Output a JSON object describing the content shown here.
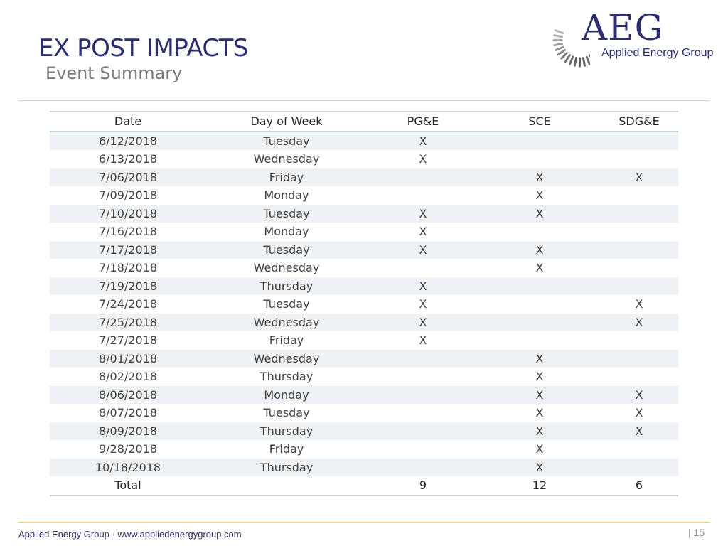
{
  "header": {
    "title": "EX POST IMPACTS",
    "subtitle": "Event Summary"
  },
  "logo": {
    "letters": "AEG",
    "tagline": "Applied Energy Group"
  },
  "table": {
    "columns": [
      "Date",
      "Day of Week",
      "PG&E",
      "SCE",
      "SDG&E"
    ],
    "rows": [
      [
        "6/12/2018",
        "Tuesday",
        "X",
        "",
        ""
      ],
      [
        "6/13/2018",
        "Wednesday",
        "X",
        "",
        ""
      ],
      [
        "7/06/2018",
        "Friday",
        "",
        "X",
        "X"
      ],
      [
        "7/09/2018",
        "Monday",
        "",
        "X",
        ""
      ],
      [
        "7/10/2018",
        "Tuesday",
        "X",
        "X",
        ""
      ],
      [
        "7/16/2018",
        "Monday",
        "X",
        "",
        ""
      ],
      [
        "7/17/2018",
        "Tuesday",
        "X",
        "X",
        ""
      ],
      [
        "7/18/2018",
        "Wednesday",
        "",
        "X",
        ""
      ],
      [
        "7/19/2018",
        "Thursday",
        "X",
        "",
        ""
      ],
      [
        "7/24/2018",
        "Tuesday",
        "X",
        "",
        "X"
      ],
      [
        "7/25/2018",
        "Wednesday",
        "X",
        "",
        "X"
      ],
      [
        "7/27/2018",
        "Friday",
        "X",
        "",
        ""
      ],
      [
        "8/01/2018",
        "Wednesday",
        "",
        "X",
        ""
      ],
      [
        "8/02/2018",
        "Thursday",
        "",
        "X",
        ""
      ],
      [
        "8/06/2018",
        "Monday",
        "",
        "X",
        "X"
      ],
      [
        "8/07/2018",
        "Tuesday",
        "",
        "X",
        "X"
      ],
      [
        "8/09/2018",
        "Thursday",
        "",
        "X",
        "X"
      ],
      [
        "9/28/2018",
        "Friday",
        "",
        "X",
        ""
      ],
      [
        "10/18/2018",
        "Thursday",
        "",
        "X",
        ""
      ]
    ],
    "total": [
      "Total",
      "",
      "9",
      "12",
      "6"
    ]
  },
  "footer": {
    "text": "Applied Energy Group · www.appliedenergygroup.com",
    "page_number": "| 15"
  },
  "colors": {
    "title": "#2b2f6f",
    "subtitle": "#7b7b7b",
    "accent_rule": "#f0c99a",
    "table_border": "#c5d3d6",
    "row_band": "#eef2f4"
  }
}
